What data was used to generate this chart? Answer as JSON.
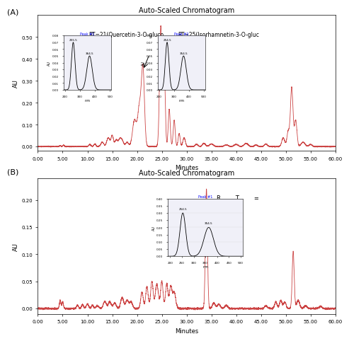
{
  "panel_A": {
    "title": "Auto-Scaled Chromatogram",
    "xlabel": "Minutes",
    "ylabel": "AU",
    "xlim": [
      0.0,
      60.0
    ],
    "ylim": [
      -0.02,
      0.6
    ],
    "yticks": [
      0.0,
      0.1,
      0.2,
      0.3,
      0.4,
      0.5
    ],
    "xticks": [
      0.0,
      5.0,
      10.0,
      15.0,
      20.0,
      25.0,
      30.0,
      35.0,
      40.0,
      45.0,
      50.0,
      55.0,
      60.0
    ],
    "annotation1_text": "RT=21(Quercetin-3-O-gluco\nside)",
    "annotation2_text": "RT=25(Isorhamnetin-3-O-gluc\noside)",
    "line_color": "#cc4444",
    "background_color": "#ffffff",
    "border_color": "#000000"
  },
  "panel_B": {
    "title": "Auto-Scaled Chromatogram",
    "xlabel": "Minutes",
    "ylabel": "AU",
    "xlim": [
      0.0,
      60.0
    ],
    "ylim": [
      -0.01,
      0.24
    ],
    "yticks": [
      0.0,
      0.05,
      0.1,
      0.15,
      0.2
    ],
    "xticks": [
      0.0,
      5.0,
      10.0,
      15.0,
      20.0,
      25.0,
      30.0,
      35.0,
      40.0,
      45.0,
      50.0,
      55.0,
      60.0
    ],
    "annotation_text": "R        T        =",
    "line_color": "#cc4444",
    "background_color": "#ffffff",
    "border_color": "#000000"
  }
}
